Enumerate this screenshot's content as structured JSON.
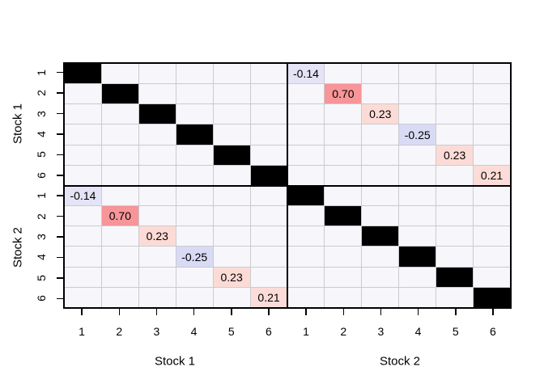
{
  "chart_data": {
    "type": "heatmap",
    "title": "",
    "description": "Cross-correlation matrix between two groups of six series; black cells mark the self-correlation diagonal, colored labeled cells mark pairwise cross-correlations",
    "matrix_size": 12,
    "groups": [
      {
        "name": "Stock 1",
        "ticks": [
          "1",
          "2",
          "3",
          "4",
          "5",
          "6"
        ]
      },
      {
        "name": "Stock 2",
        "ticks": [
          "1",
          "2",
          "3",
          "4",
          "5",
          "6"
        ]
      }
    ],
    "self_correlation": {
      "value": 1,
      "color": "#000000"
    },
    "cross_diagonal": {
      "pairs": [
        "1",
        "2",
        "3",
        "4",
        "5",
        "6"
      ],
      "values": [
        -0.14,
        0.7,
        0.23,
        -0.25,
        0.23,
        0.21
      ],
      "labels": [
        "-0.14",
        "0.70",
        "0.23",
        "-0.25",
        "0.23",
        "0.21"
      ],
      "colors": [
        "#e4e4f6",
        "#f79598",
        "#fcdbd6",
        "#d9daf3",
        "#fcdbd6",
        "#fcdcd8"
      ]
    },
    "axes": {
      "left": [
        "Stock 1",
        "Stock 2"
      ],
      "bottom": [
        "Stock 1",
        "Stock 2"
      ],
      "left_tick_labels": [
        "1",
        "2",
        "3",
        "4",
        "5",
        "6",
        "1",
        "2",
        "3",
        "4",
        "5",
        "6"
      ],
      "bottom_tick_labels": [
        "1",
        "2",
        "3",
        "4",
        "5",
        "6",
        "1",
        "2",
        "3",
        "4",
        "5",
        "6"
      ]
    },
    "style": {
      "cell_background": "#f6f6fb",
      "grid_line": "#cbcbcf",
      "border": "#000000",
      "text": "#000000",
      "page_background": "#ffffff"
    }
  }
}
